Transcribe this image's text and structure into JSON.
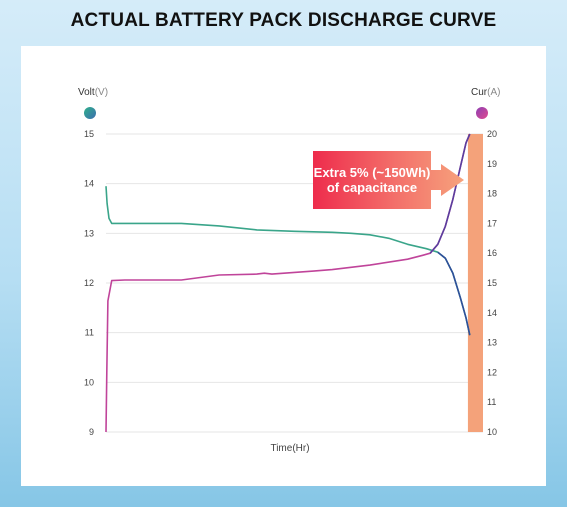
{
  "title": "ACTUAL BATTERY PACK DISCHARGE CURVE",
  "left_axis": {
    "name": "Volt",
    "unit": "(V)",
    "color": "#3aa58a"
  },
  "right_axis": {
    "name": "Cur",
    "unit": "(A)",
    "color": "#c0449a"
  },
  "callout": {
    "text": "Extra 5% (~150Wh) of capacitance"
  },
  "chart_data": {
    "type": "line",
    "title": "ACTUAL BATTERY PACK DISCHARGE CURVE",
    "xlabel": "Time(Hr)",
    "ylabel": "Volt(V)",
    "y2label": "Cur(A)",
    "ylim": [
      9,
      15
    ],
    "y2lim": [
      10,
      20
    ],
    "xlim": [
      0,
      100
    ],
    "y_ticks": [
      9,
      10,
      11,
      12,
      13,
      14,
      15
    ],
    "y2_ticks": [
      10,
      11,
      12,
      13,
      14,
      15,
      16,
      17,
      18,
      19,
      20
    ],
    "grid": true,
    "highlight": {
      "x_from": 96,
      "x_to": 100,
      "color": "#f4a27a"
    },
    "series": [
      {
        "name": "Volt",
        "axis": "left",
        "color": "#3aa58a",
        "points": [
          [
            0,
            13.95
          ],
          [
            0.3,
            13.6
          ],
          [
            0.8,
            13.3
          ],
          [
            1.5,
            13.2
          ],
          [
            10,
            13.2
          ],
          [
            20,
            13.2
          ],
          [
            30,
            13.15
          ],
          [
            40,
            13.07
          ],
          [
            50,
            13.04
          ],
          [
            60,
            13.02
          ],
          [
            65,
            13.0
          ],
          [
            70,
            12.97
          ],
          [
            75,
            12.9
          ],
          [
            80,
            12.78
          ],
          [
            85,
            12.69
          ],
          [
            88,
            12.62
          ],
          [
            90,
            12.5
          ],
          [
            92,
            12.2
          ],
          [
            94,
            11.7
          ],
          [
            95.5,
            11.3
          ],
          [
            96.5,
            10.95
          ]
        ]
      },
      {
        "name": "Cur",
        "axis": "right",
        "color": "#c0449a",
        "points": [
          [
            0,
            10.0
          ],
          [
            0.2,
            12.0
          ],
          [
            0.5,
            14.4
          ],
          [
            1.5,
            15.08
          ],
          [
            5,
            15.1
          ],
          [
            20,
            15.1
          ],
          [
            30,
            15.27
          ],
          [
            40,
            15.3
          ],
          [
            42,
            15.33
          ],
          [
            44,
            15.3
          ],
          [
            55,
            15.4
          ],
          [
            60,
            15.45
          ],
          [
            70,
            15.6
          ],
          [
            80,
            15.8
          ],
          [
            84,
            15.93
          ],
          [
            86,
            16.0
          ],
          [
            88,
            16.3
          ],
          [
            90,
            16.9
          ],
          [
            92,
            17.8
          ],
          [
            94,
            18.9
          ],
          [
            95.5,
            19.7
          ],
          [
            96.5,
            20.0
          ]
        ]
      }
    ]
  }
}
